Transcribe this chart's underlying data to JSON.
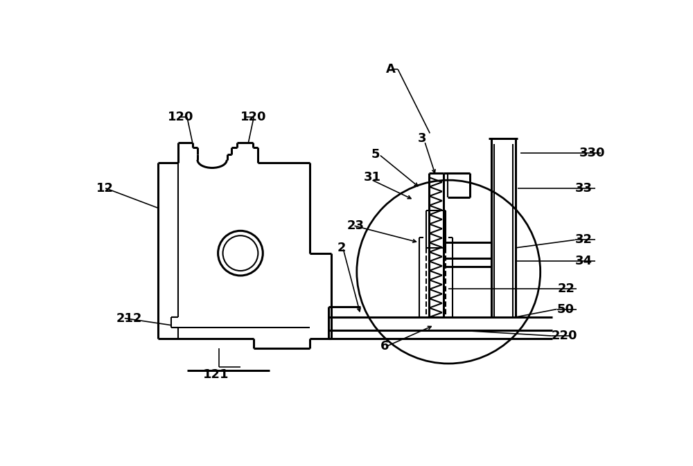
{
  "background_color": "#ffffff",
  "line_color": "#000000",
  "lw": 1.5,
  "blw": 2.2,
  "fig_width": 10.0,
  "fig_height": 6.73
}
